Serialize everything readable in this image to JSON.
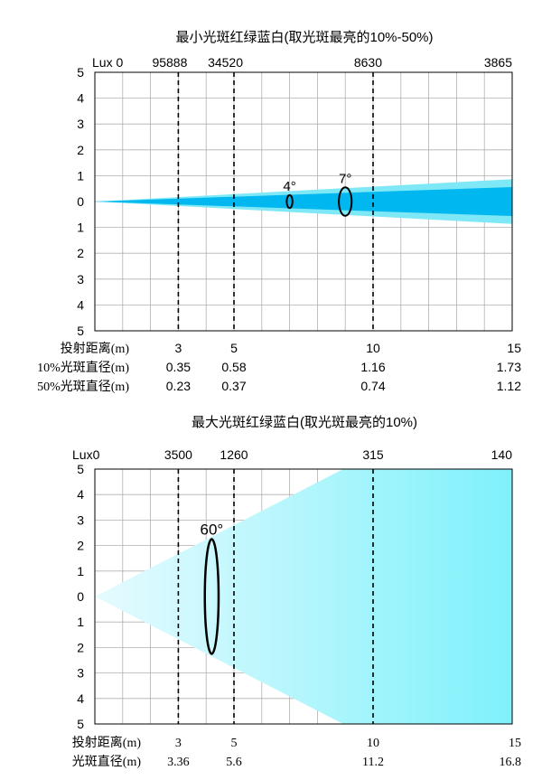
{
  "chart_data": [
    {
      "type": "area",
      "title": "最小光斑红绿蓝白(取光斑最亮的10%-50%)",
      "lux_label": "Lux 0",
      "x_range": [
        0,
        15
      ],
      "y_range": [
        -5,
        5
      ],
      "y_tick_labels": [
        "5",
        "4",
        "3",
        "2",
        "1",
        "0",
        "1",
        "2",
        "3",
        "4",
        "5"
      ],
      "lux_ticks": [
        {
          "x": 3,
          "label": "95888"
        },
        {
          "x": 5,
          "label": "34520"
        },
        {
          "x": 10,
          "label": "8630"
        },
        {
          "x": 15,
          "label": "3865"
        }
      ],
      "dashed_lines_x": [
        3,
        5,
        10
      ],
      "rows": [
        {
          "label": "投射距离(m)",
          "values": [
            "3",
            "5",
            "10",
            "15"
          ]
        },
        {
          "label": "10%光斑直径(m)",
          "values": [
            "0.35",
            "0.58",
            "1.16",
            "1.73"
          ]
        },
        {
          "label": "50%光斑直径(m)",
          "values": [
            "0.23",
            "0.37",
            "0.74",
            "1.12"
          ]
        }
      ],
      "row_x": [
        3,
        5,
        10,
        15
      ],
      "series": [
        {
          "name": "10%",
          "color": "#7fe8f7",
          "diameters": [
            0.35,
            0.58,
            1.16,
            1.73
          ]
        },
        {
          "name": "50%",
          "color": "#00b7ef",
          "diameters": [
            0.23,
            0.37,
            0.74,
            1.12
          ]
        }
      ],
      "beam_angles": [
        {
          "label": "4°",
          "x": 7,
          "diameter": 0.5
        },
        {
          "label": "7°",
          "x": 9,
          "diameter": 1.1
        }
      ]
    },
    {
      "type": "area",
      "title": "最大光斑红绿蓝白(取光斑最亮的10%)",
      "lux_label": "Lux0",
      "x_range": [
        0,
        15
      ],
      "y_range": [
        -5,
        5
      ],
      "y_tick_labels": [
        "5",
        "4",
        "3",
        "2",
        "1",
        "0",
        "1",
        "2",
        "3",
        "4",
        "5"
      ],
      "lux_ticks": [
        {
          "x": 3,
          "label": "3500"
        },
        {
          "x": 5,
          "label": "1260"
        },
        {
          "x": 10,
          "label": "315"
        },
        {
          "x": 15,
          "label": "140"
        }
      ],
      "dashed_lines_x": [
        3,
        5,
        10
      ],
      "rows": [
        {
          "label": "投射距离(m)",
          "values": [
            "3",
            "5",
            "10",
            "15"
          ]
        },
        {
          "label": "光斑直径(m)",
          "values": [
            "3.36",
            "5.6",
            "11.2",
            "16.8"
          ]
        }
      ],
      "row_x": [
        3,
        5,
        10,
        15
      ],
      "series": [
        {
          "name": "10%",
          "color_start": "#e6fbfe",
          "color_end": "#7ff1fb",
          "diameters": [
            3.36,
            5.6,
            11.2,
            16.8
          ]
        }
      ],
      "beam_angles": [
        {
          "label": "60°",
          "x": 4.2,
          "diameter": 4.5
        }
      ]
    }
  ]
}
